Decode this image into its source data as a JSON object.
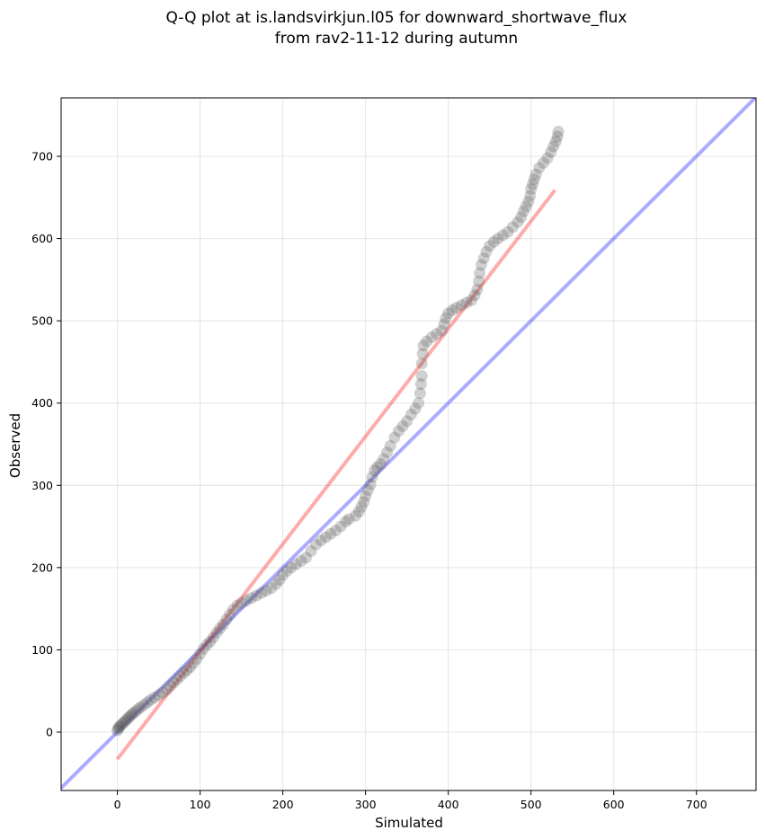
{
  "chart_data": {
    "type": "scatter",
    "title": "Q-Q plot at is.landsvirkjun.l05 for downward_shortwave_flux",
    "subtitle": "from rav2-11-12 during autumn",
    "xlabel": "Simulated",
    "ylabel": "Observed",
    "xlim": [
      -68,
      772
    ],
    "ylim": [
      -71,
      771
    ],
    "xticks": [
      0,
      100,
      200,
      300,
      400,
      500,
      600,
      700
    ],
    "yticks": [
      0,
      100,
      200,
      300,
      400,
      500,
      600,
      700
    ],
    "grid": true,
    "series": [
      {
        "name": "quantiles",
        "color": "#555555",
        "points": [
          [
            0,
            2
          ],
          [
            1,
            4
          ],
          [
            2,
            6
          ],
          [
            3,
            7
          ],
          [
            5,
            9
          ],
          [
            7,
            11
          ],
          [
            9,
            13
          ],
          [
            11,
            15
          ],
          [
            13,
            17
          ],
          [
            15,
            19
          ],
          [
            17,
            21
          ],
          [
            19,
            23
          ],
          [
            22,
            25
          ],
          [
            25,
            28
          ],
          [
            28,
            30
          ],
          [
            32,
            33
          ],
          [
            36,
            36
          ],
          [
            40,
            39
          ],
          [
            45,
            42
          ],
          [
            50,
            45
          ],
          [
            55,
            48
          ],
          [
            60,
            52
          ],
          [
            64,
            56
          ],
          [
            68,
            60
          ],
          [
            72,
            64
          ],
          [
            76,
            68
          ],
          [
            80,
            72
          ],
          [
            84,
            75
          ],
          [
            88,
            79
          ],
          [
            92,
            84
          ],
          [
            96,
            89
          ],
          [
            100,
            95
          ],
          [
            104,
            101
          ],
          [
            108,
            106
          ],
          [
            112,
            110
          ],
          [
            116,
            115
          ],
          [
            120,
            121
          ],
          [
            124,
            126
          ],
          [
            128,
            131
          ],
          [
            132,
            137
          ],
          [
            136,
            143
          ],
          [
            140,
            149
          ],
          [
            145,
            154
          ],
          [
            150,
            157
          ],
          [
            156,
            160
          ],
          [
            162,
            163
          ],
          [
            168,
            166
          ],
          [
            174,
            169
          ],
          [
            180,
            172
          ],
          [
            186,
            175
          ],
          [
            192,
            180
          ],
          [
            196,
            185
          ],
          [
            200,
            191
          ],
          [
            205,
            196
          ],
          [
            210,
            200
          ],
          [
            216,
            204
          ],
          [
            222,
            208
          ],
          [
            228,
            212
          ],
          [
            234,
            220
          ],
          [
            240,
            228
          ],
          [
            246,
            233
          ],
          [
            252,
            237
          ],
          [
            258,
            241
          ],
          [
            264,
            245
          ],
          [
            270,
            250
          ],
          [
            276,
            256
          ],
          [
            280,
            259
          ],
          [
            288,
            263
          ],
          [
            292,
            268
          ],
          [
            295,
            274
          ],
          [
            298,
            280
          ],
          [
            300,
            287
          ],
          [
            303,
            294
          ],
          [
            306,
            301
          ],
          [
            308,
            310
          ],
          [
            311,
            318
          ],
          [
            314,
            322
          ],
          [
            318,
            326
          ],
          [
            322,
            332
          ],
          [
            326,
            340
          ],
          [
            330,
            348
          ],
          [
            335,
            358
          ],
          [
            340,
            366
          ],
          [
            345,
            372
          ],
          [
            350,
            378
          ],
          [
            355,
            386
          ],
          [
            360,
            393
          ],
          [
            364,
            400
          ],
          [
            366,
            412
          ],
          [
            367,
            423
          ],
          [
            368,
            433
          ],
          [
            368,
            448
          ],
          [
            369,
            460
          ],
          [
            370,
            470
          ],
          [
            374,
            475
          ],
          [
            380,
            480
          ],
          [
            386,
            484
          ],
          [
            392,
            488
          ],
          [
            395,
            496
          ],
          [
            397,
            503
          ],
          [
            400,
            509
          ],
          [
            405,
            513
          ],
          [
            410,
            516
          ],
          [
            416,
            519
          ],
          [
            422,
            522
          ],
          [
            428,
            525
          ],
          [
            432,
            531
          ],
          [
            435,
            538
          ],
          [
            437,
            548
          ],
          [
            438,
            558
          ],
          [
            440,
            568
          ],
          [
            443,
            576
          ],
          [
            446,
            584
          ],
          [
            450,
            591
          ],
          [
            455,
            596
          ],
          [
            460,
            600
          ],
          [
            466,
            604
          ],
          [
            472,
            608
          ],
          [
            478,
            614
          ],
          [
            484,
            620
          ],
          [
            488,
            626
          ],
          [
            491,
            633
          ],
          [
            494,
            639
          ],
          [
            497,
            645
          ],
          [
            499,
            652
          ],
          [
            500,
            660
          ],
          [
            502,
            666
          ],
          [
            504,
            672
          ],
          [
            506,
            678
          ],
          [
            510,
            686
          ],
          [
            515,
            692
          ],
          [
            520,
            698
          ],
          [
            524,
            705
          ],
          [
            527,
            712
          ],
          [
            530,
            718
          ],
          [
            532,
            724
          ],
          [
            533,
            730
          ]
        ]
      }
    ],
    "reference_lines": [
      {
        "name": "1:1 line",
        "color": "#0000ff",
        "x": [
          -68,
          772
        ],
        "y": [
          -68,
          772
        ]
      },
      {
        "name": "regression fit",
        "color": "#ff0000",
        "x": [
          0,
          529
        ],
        "y": [
          -33,
          659
        ]
      }
    ]
  }
}
